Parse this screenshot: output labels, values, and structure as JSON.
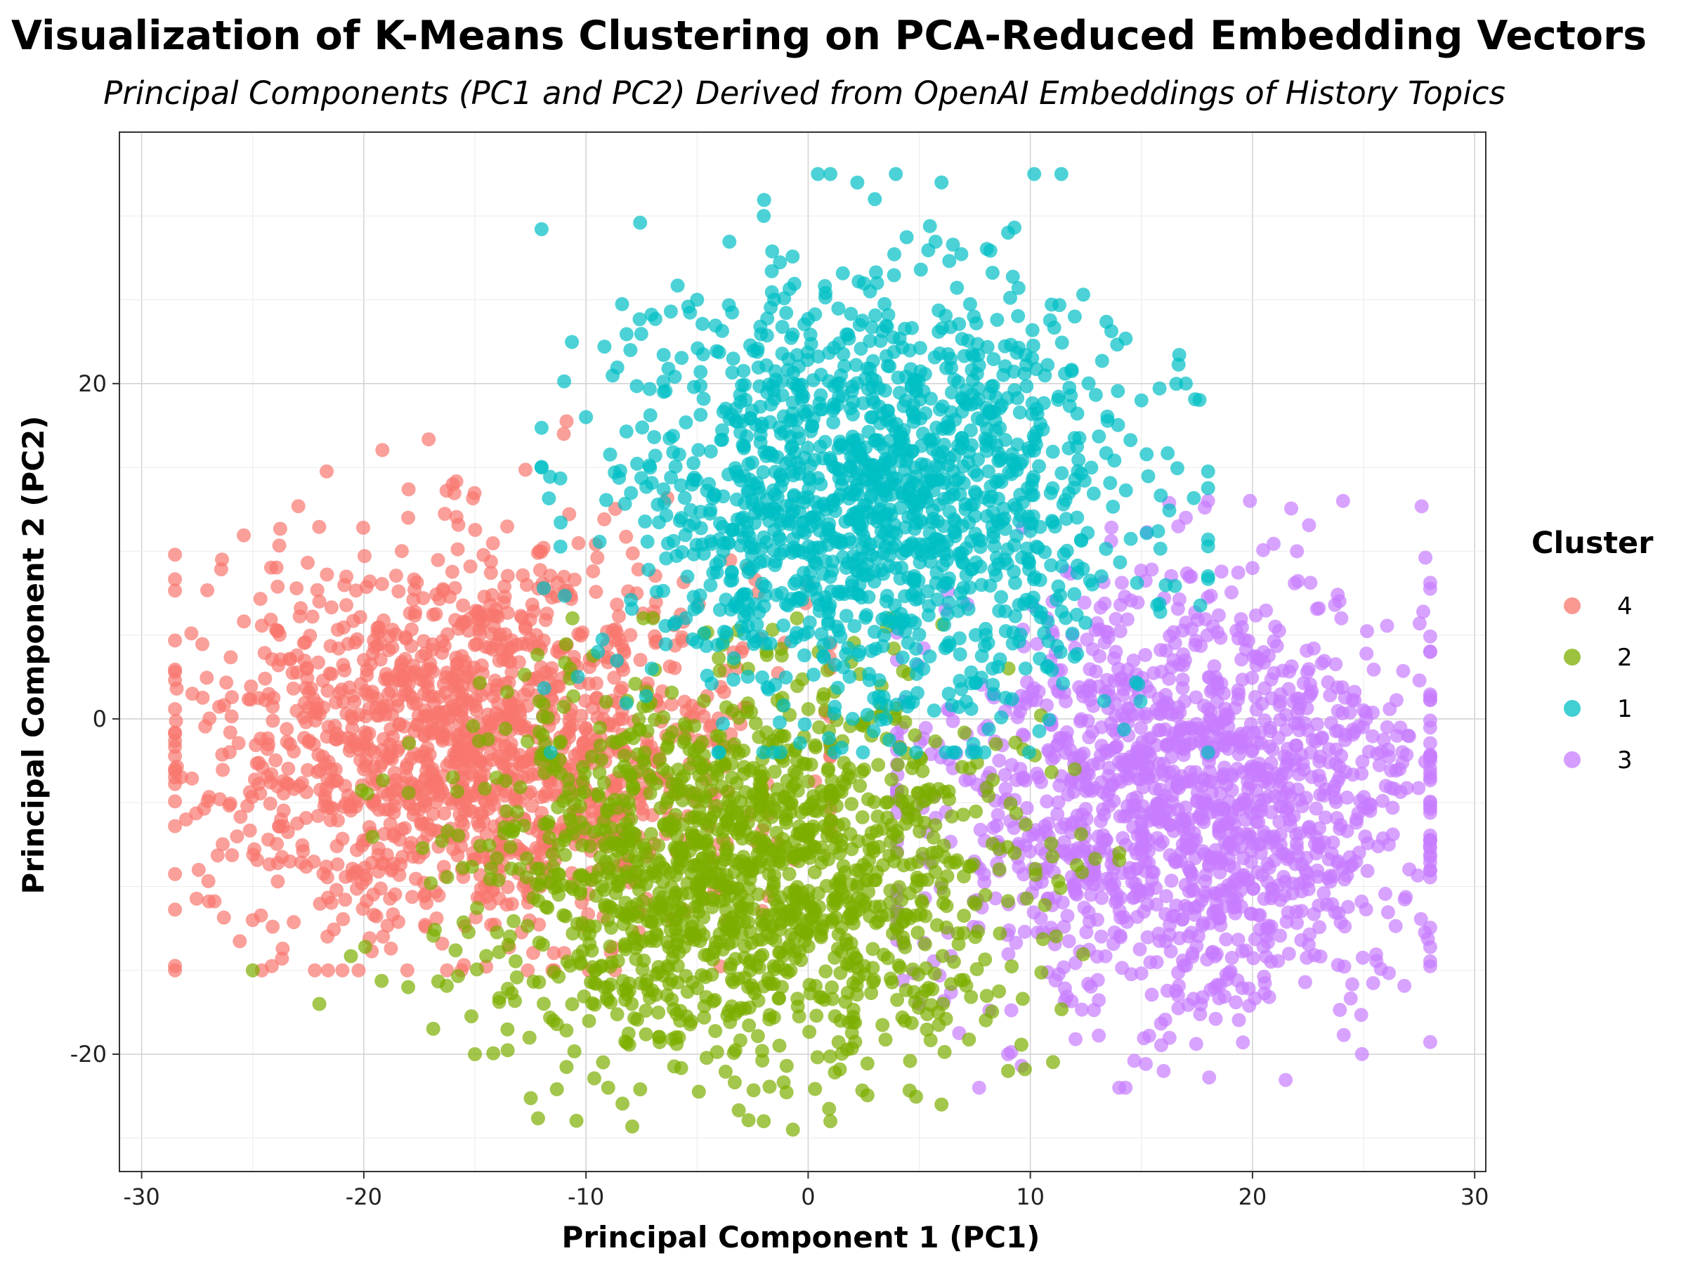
{
  "chart_data": {
    "type": "scatter",
    "title": "Visualization of K-Means Clustering on PCA-Reduced Embedding Vectors",
    "subtitle": "Principal Components (PC1 and PC2) Derived from OpenAI Embeddings of History Topics",
    "xlabel": "Principal Component 1 (PC1)",
    "ylabel": "Principal Component 2 (PC2)",
    "xlim": [
      -31,
      30.5
    ],
    "ylim": [
      -27,
      35
    ],
    "x_ticks": [
      "-30",
      "-20",
      "-10",
      "0",
      "10",
      "20",
      "30"
    ],
    "y_ticks": [
      "-20",
      "0",
      "20"
    ],
    "grid": true,
    "legend": {
      "title": "Cluster",
      "position": "right",
      "entries": [
        "4",
        "2",
        "1",
        "3"
      ]
    },
    "series": [
      {
        "name": "4",
        "color": "#F8766D",
        "approx_count": 1500,
        "center": [
          -15,
          -1.5
        ],
        "x_range": [
          -28.5,
          1
        ],
        "y_range": [
          -15,
          18
        ],
        "sample_points": [
          [
            -28,
            -6
          ],
          [
            -25,
            -12
          ],
          [
            -22,
            7
          ],
          [
            -20,
            -3
          ],
          [
            -18,
            12
          ],
          [
            -16,
            14
          ],
          [
            -14,
            2
          ],
          [
            -12,
            -8
          ],
          [
            -11,
            17
          ],
          [
            -8,
            5
          ],
          [
            -6,
            -6
          ],
          [
            -3,
            4
          ],
          [
            0,
            8
          ]
        ]
      },
      {
        "name": "2",
        "color": "#7CAE00",
        "approx_count": 1500,
        "center": [
          -3,
          -9
        ],
        "x_range": [
          -25,
          14
        ],
        "y_range": [
          -24.5,
          6
        ],
        "sample_points": [
          [
            -25,
            -15
          ],
          [
            -22,
            -17
          ],
          [
            -18,
            -16
          ],
          [
            -15,
            -20
          ],
          [
            -9,
            -22
          ],
          [
            -5,
            -10
          ],
          [
            -2,
            -24
          ],
          [
            1,
            -24
          ],
          [
            4,
            -8
          ],
          [
            6,
            -23
          ],
          [
            9,
            -21
          ],
          [
            12,
            -3
          ],
          [
            14,
            -8
          ]
        ]
      },
      {
        "name": "1",
        "color": "#00BFC4",
        "approx_count": 1500,
        "center": [
          3,
          13
        ],
        "x_range": [
          -12,
          18
        ],
        "y_range": [
          -2,
          32.5
        ],
        "sample_points": [
          [
            -12,
            15
          ],
          [
            -10,
            18
          ],
          [
            -8,
            22
          ],
          [
            -5,
            25
          ],
          [
            -2,
            30
          ],
          [
            1,
            32.5
          ],
          [
            3,
            31
          ],
          [
            6,
            32
          ],
          [
            9,
            29
          ],
          [
            12,
            24
          ],
          [
            15,
            19
          ],
          [
            17,
            20
          ],
          [
            8,
            5
          ],
          [
            2,
            0
          ]
        ]
      },
      {
        "name": "3",
        "color": "#C77CFF",
        "approx_count": 1500,
        "center": [
          17,
          -5
        ],
        "x_range": [
          4,
          28
        ],
        "y_range": [
          -22,
          13
        ],
        "sample_points": [
          [
            5,
            -17
          ],
          [
            9,
            -20
          ],
          [
            11,
            7
          ],
          [
            14,
            -22
          ],
          [
            17,
            12
          ],
          [
            18,
            13
          ],
          [
            20,
            9
          ],
          [
            22,
            10
          ],
          [
            24,
            6
          ],
          [
            26,
            -4
          ],
          [
            27,
            -1
          ],
          [
            28,
            -3.5
          ],
          [
            16,
            -21
          ]
        ]
      }
    ]
  }
}
